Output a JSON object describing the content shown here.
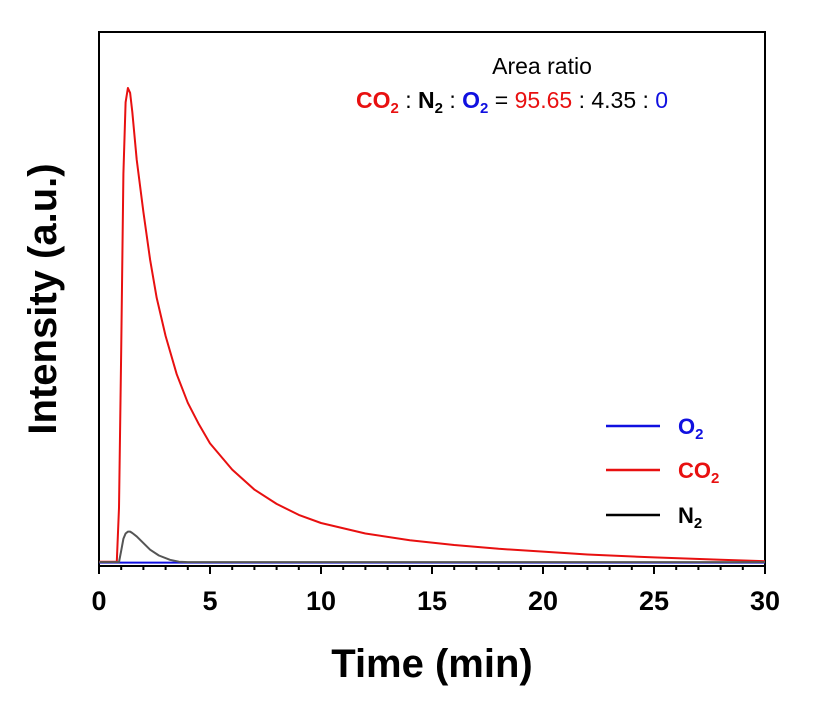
{
  "chart_data": {
    "type": "line",
    "xlabel": "Time (min)",
    "ylabel": "Intensity (a.u.)",
    "xlim": [
      0,
      30
    ],
    "ylim": [
      0,
      100
    ],
    "x_ticks": [
      "0",
      "5",
      "10",
      "15",
      "20",
      "25",
      "30"
    ],
    "grid": false,
    "legend_position": "right",
    "annotation": {
      "title": "Area ratio",
      "species": [
        "CO",
        "N",
        "O"
      ],
      "subscript": "2",
      "separator": ":",
      "equals": "=",
      "values": [
        "95.65",
        "4.35",
        "0"
      ]
    },
    "series": [
      {
        "name": "O2",
        "label": "O",
        "subscript": "2",
        "color": "#1010e0",
        "x": [
          0,
          30
        ],
        "y": [
          0.5,
          0.5
        ]
      },
      {
        "name": "CO2",
        "label": "CO",
        "subscript": "2",
        "color": "#e81010",
        "x": [
          0,
          0.8,
          0.9,
          1.0,
          1.1,
          1.2,
          1.3,
          1.4,
          1.5,
          1.7,
          2.0,
          2.3,
          2.6,
          3.0,
          3.5,
          4.0,
          4.5,
          5.0,
          6.0,
          7.0,
          8.0,
          9.0,
          10.0,
          12.0,
          14.0,
          16.0,
          18.0,
          20.0,
          22.0,
          25.0,
          28.0,
          30.0
        ],
        "y": [
          0.7,
          0.7,
          12,
          45,
          82,
          97,
          100,
          99,
          95,
          85,
          74,
          64,
          56,
          48,
          40,
          34,
          29.5,
          25.5,
          20,
          15.8,
          12.8,
          10.5,
          8.8,
          6.6,
          5.2,
          4.2,
          3.4,
          2.8,
          2.2,
          1.6,
          1.1,
          0.8
        ]
      },
      {
        "name": "N2",
        "label": "N",
        "subscript": "2",
        "color": "#555555",
        "x": [
          0,
          0.9,
          1.0,
          1.1,
          1.2,
          1.3,
          1.4,
          1.5,
          1.7,
          2.0,
          2.3,
          2.7,
          3.2,
          3.6,
          4.0,
          30.0
        ],
        "y": [
          0.6,
          0.6,
          3,
          5.5,
          6.6,
          7.0,
          7.0,
          6.7,
          6.0,
          4.6,
          3.2,
          2.0,
          1.1,
          0.7,
          0.6,
          0.6
        ]
      }
    ]
  }
}
